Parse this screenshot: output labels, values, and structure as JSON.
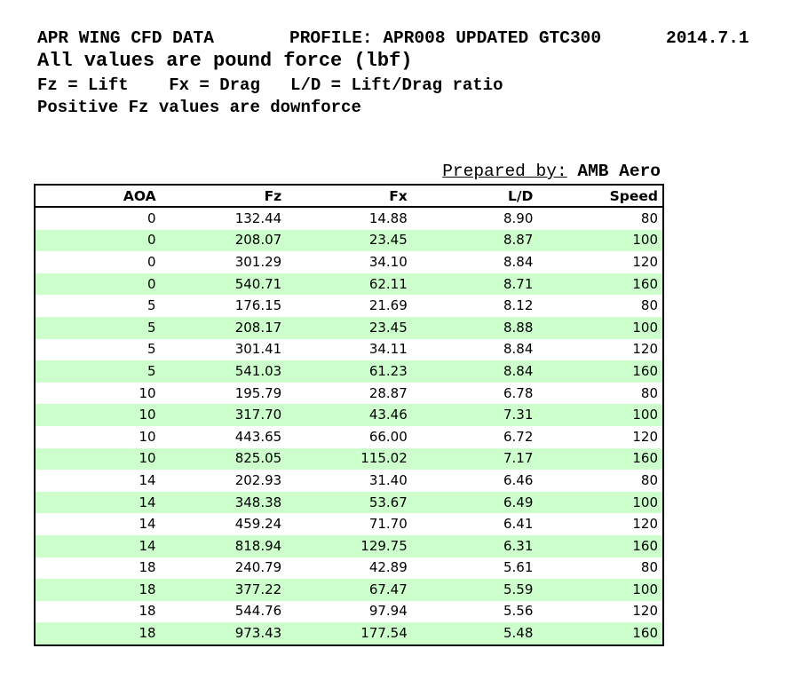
{
  "header": {
    "title": "APR WING CFD DATA",
    "profile": "PROFILE: APR008 UPDATED GTC300",
    "date": "2014.7.1",
    "subtitle": "All values are pound force (lbf)",
    "legend": "Fz = Lift    Fx = Drag   L/D = Lift/Drag ratio",
    "note": "Positive Fz values are downforce"
  },
  "prepared": {
    "label": "Prepared by:",
    "value": "AMB Aero"
  },
  "colors": {
    "stripe_green": "#ccffcc",
    "border_black": "#000000",
    "text_black": "#000000",
    "background_white": "#ffffff"
  },
  "table": {
    "columns": [
      "AOA",
      "Fz",
      "Fx",
      "L/D",
      "Speed"
    ],
    "column_keys": [
      "aoa",
      "fz",
      "fx",
      "ld",
      "speed"
    ],
    "rows": [
      [
        "0",
        "132.44",
        "14.88",
        "8.90",
        "80"
      ],
      [
        "0",
        "208.07",
        "23.45",
        "8.87",
        "100"
      ],
      [
        "0",
        "301.29",
        "34.10",
        "8.84",
        "120"
      ],
      [
        "0",
        "540.71",
        "62.11",
        "8.71",
        "160"
      ],
      [
        "5",
        "176.15",
        "21.69",
        "8.12",
        "80"
      ],
      [
        "5",
        "208.17",
        "23.45",
        "8.88",
        "100"
      ],
      [
        "5",
        "301.41",
        "34.11",
        "8.84",
        "120"
      ],
      [
        "5",
        "541.03",
        "61.23",
        "8.84",
        "160"
      ],
      [
        "10",
        "195.79",
        "28.87",
        "6.78",
        "80"
      ],
      [
        "10",
        "317.70",
        "43.46",
        "7.31",
        "100"
      ],
      [
        "10",
        "443.65",
        "66.00",
        "6.72",
        "120"
      ],
      [
        "10",
        "825.05",
        "115.02",
        "7.17",
        "160"
      ],
      [
        "14",
        "202.93",
        "31.40",
        "6.46",
        "80"
      ],
      [
        "14",
        "348.38",
        "53.67",
        "6.49",
        "100"
      ],
      [
        "14",
        "459.24",
        "71.70",
        "6.41",
        "120"
      ],
      [
        "14",
        "818.94",
        "129.75",
        "6.31",
        "160"
      ],
      [
        "18",
        "240.79",
        "42.89",
        "5.61",
        "80"
      ],
      [
        "18",
        "377.22",
        "67.47",
        "5.59",
        "100"
      ],
      [
        "18",
        "544.76",
        "97.94",
        "5.56",
        "120"
      ],
      [
        "18",
        "973.43",
        "177.54",
        "5.48",
        "160"
      ]
    ]
  }
}
